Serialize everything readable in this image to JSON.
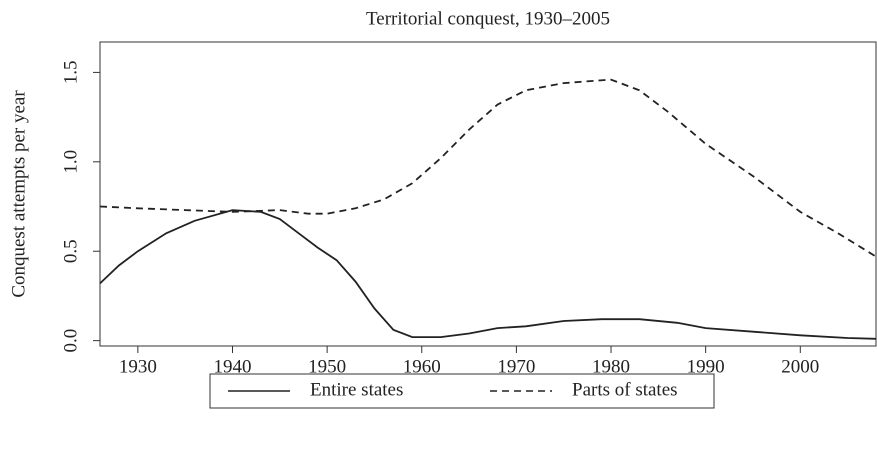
{
  "chart_data": {
    "type": "line",
    "title": "Territorial conquest, 1930–2005",
    "y_label": "Conquest attempts per year",
    "xlim": [
      1926,
      2008
    ],
    "xticks": [
      1930,
      1940,
      1950,
      1960,
      1970,
      1980,
      1990,
      2000
    ],
    "ylim": [
      -0.03,
      1.67
    ],
    "yticks": [
      {
        "value": 0,
        "label": "0.0"
      },
      0.5,
      {
        "value": 1,
        "label": "1.0"
      },
      1.5
    ],
    "legend": "bottom",
    "series": [
      {
        "name": "Entire states",
        "color": "#222222",
        "dash": "solid",
        "x": [
          1926,
          1928,
          1930,
          1933,
          1936,
          1940,
          1943,
          1945,
          1947,
          1949,
          1951,
          1953,
          1955,
          1957,
          1959,
          1962,
          1965,
          1968,
          1971,
          1975,
          1979,
          1983,
          1987,
          1990,
          1995,
          2000,
          2005,
          2008
        ],
        "values": [
          0.32,
          0.42,
          0.5,
          0.6,
          0.67,
          0.73,
          0.72,
          0.68,
          0.6,
          0.52,
          0.45,
          0.33,
          0.18,
          0.06,
          0.02,
          0.02,
          0.04,
          0.07,
          0.08,
          0.11,
          0.12,
          0.12,
          0.1,
          0.07,
          0.05,
          0.03,
          0.015,
          0.01
        ]
      },
      {
        "name": "Parts of states",
        "color": "#222222",
        "dash": "dashed",
        "x": [
          1926,
          1930,
          1935,
          1940,
          1945,
          1948,
          1950,
          1953,
          1956,
          1959,
          1962,
          1965,
          1968,
          1971,
          1975,
          1980,
          1983,
          1986,
          1990,
          1995,
          2000,
          2004,
          2008
        ],
        "values": [
          0.75,
          0.74,
          0.73,
          0.72,
          0.73,
          0.71,
          0.71,
          0.74,
          0.79,
          0.88,
          1.02,
          1.18,
          1.32,
          1.4,
          1.44,
          1.46,
          1.4,
          1.28,
          1.1,
          0.92,
          0.72,
          0.6,
          0.47
        ]
      }
    ]
  }
}
